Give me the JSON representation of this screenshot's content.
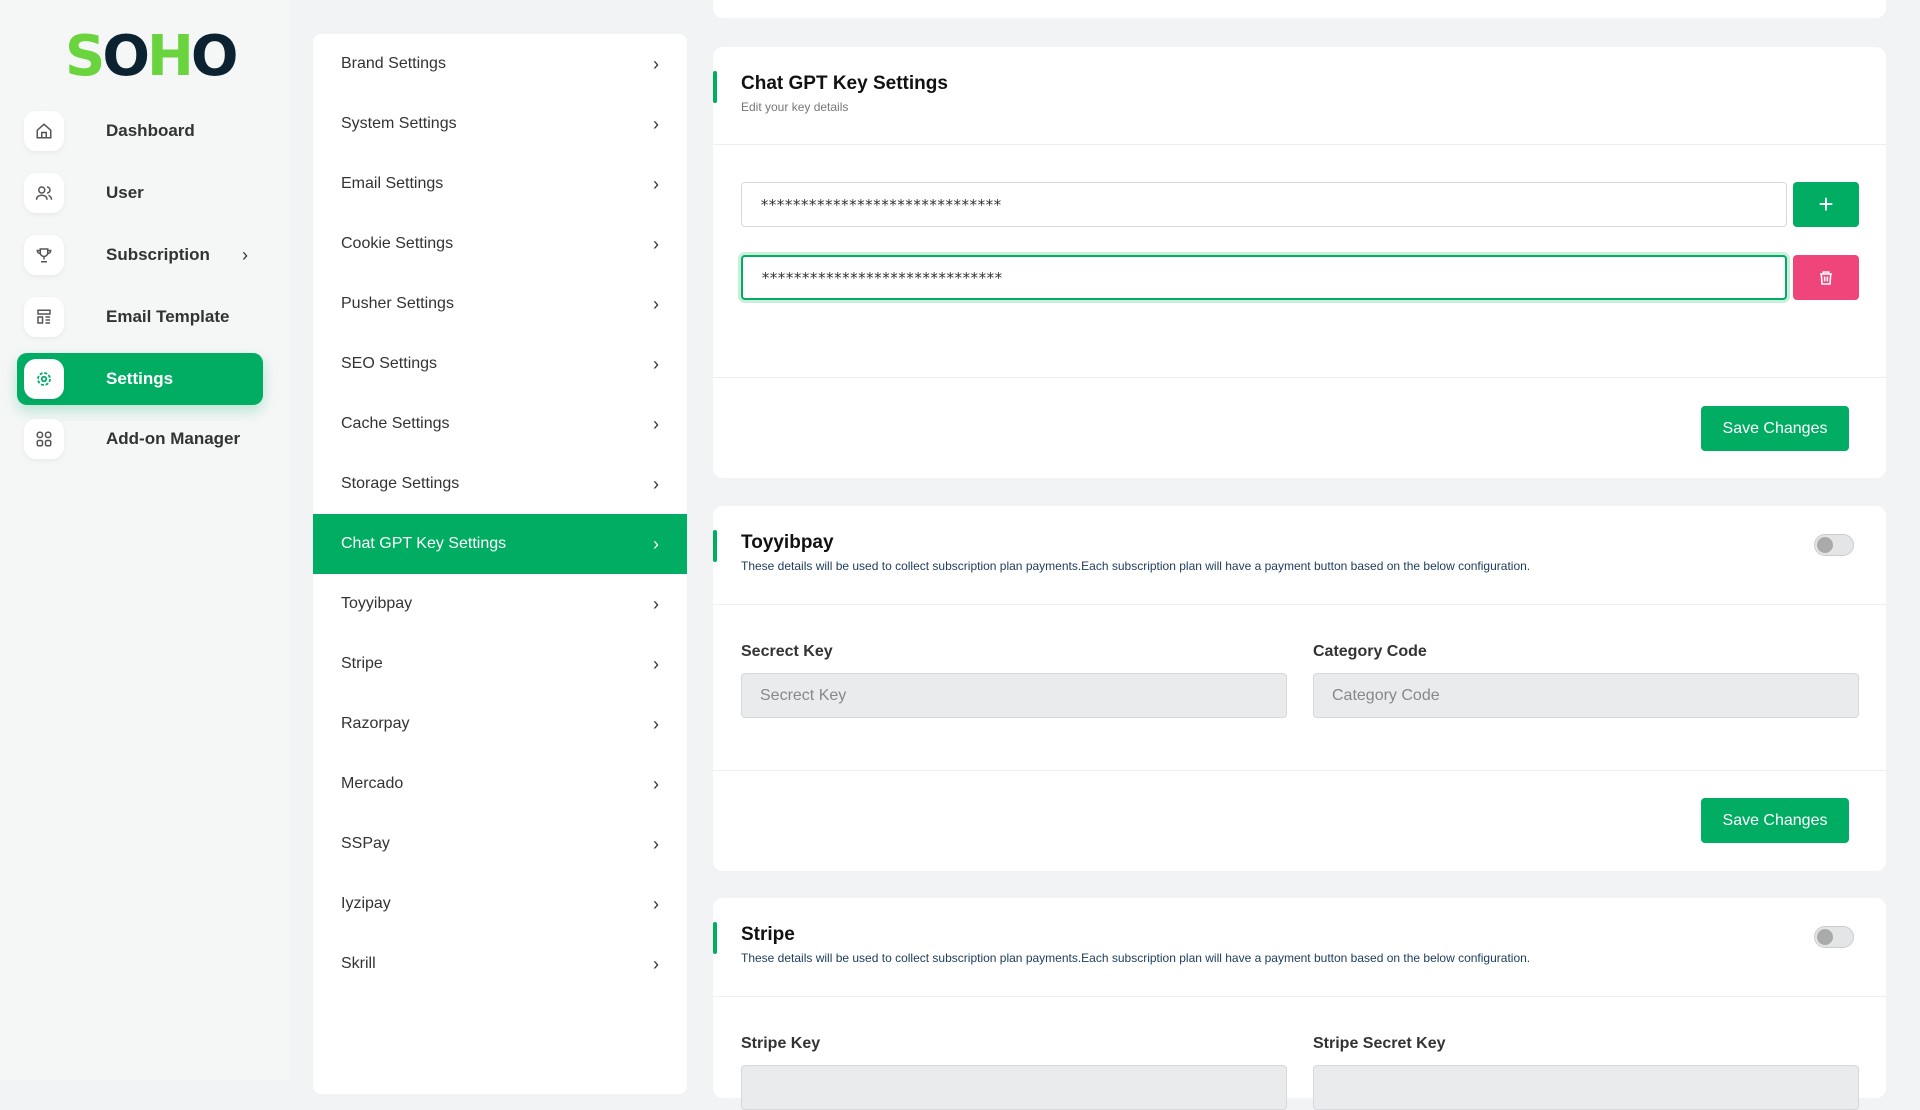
{
  "brand": {
    "logo_part1": "S",
    "logo_part2": "O",
    "logo_part3": "H",
    "logo_part4": "O",
    "accent": "#00ad63",
    "danger": "#f0457a"
  },
  "sidebar": {
    "items": [
      {
        "label": "Dashboard",
        "icon": "home-icon"
      },
      {
        "label": "User",
        "icon": "users-icon"
      },
      {
        "label": "Subscription",
        "icon": "trophy-icon"
      },
      {
        "label": "Email Template",
        "icon": "template-icon"
      },
      {
        "label": "Settings",
        "icon": "gear-icon"
      },
      {
        "label": "Add-on Manager",
        "icon": "grid-icon"
      }
    ]
  },
  "settings_menu": [
    "Brand Settings",
    "System Settings",
    "Email Settings",
    "Cookie Settings",
    "Pusher Settings",
    "SEO Settings",
    "Cache Settings",
    "Storage Settings",
    "Chat GPT Key Settings",
    "Toyyibpay",
    "Stripe",
    "Razorpay",
    "Mercado",
    "SSPay",
    "Iyzipay",
    "Skrill"
  ],
  "chatgpt": {
    "title": "Chat GPT Key Settings",
    "subtitle": "Edit your key details",
    "keys": [
      "******************************",
      "******************************"
    ],
    "save": "Save Changes"
  },
  "toyyibpay": {
    "title": "Toyyibpay",
    "desc": "These details will be used to collect subscription plan payments.Each subscription plan will have a payment button based on the below configuration.",
    "enabled": false,
    "secret_label": "Secrect Key",
    "secret_placeholder": "Secrect Key",
    "category_label": "Category Code",
    "category_placeholder": "Category Code",
    "save": "Save Changes"
  },
  "stripe": {
    "title": "Stripe",
    "desc": "These details will be used to collect subscription plan payments.Each subscription plan will have a payment button based on the below configuration.",
    "enabled": false,
    "key_label": "Stripe Key",
    "secret_label": "Stripe Secret Key"
  }
}
